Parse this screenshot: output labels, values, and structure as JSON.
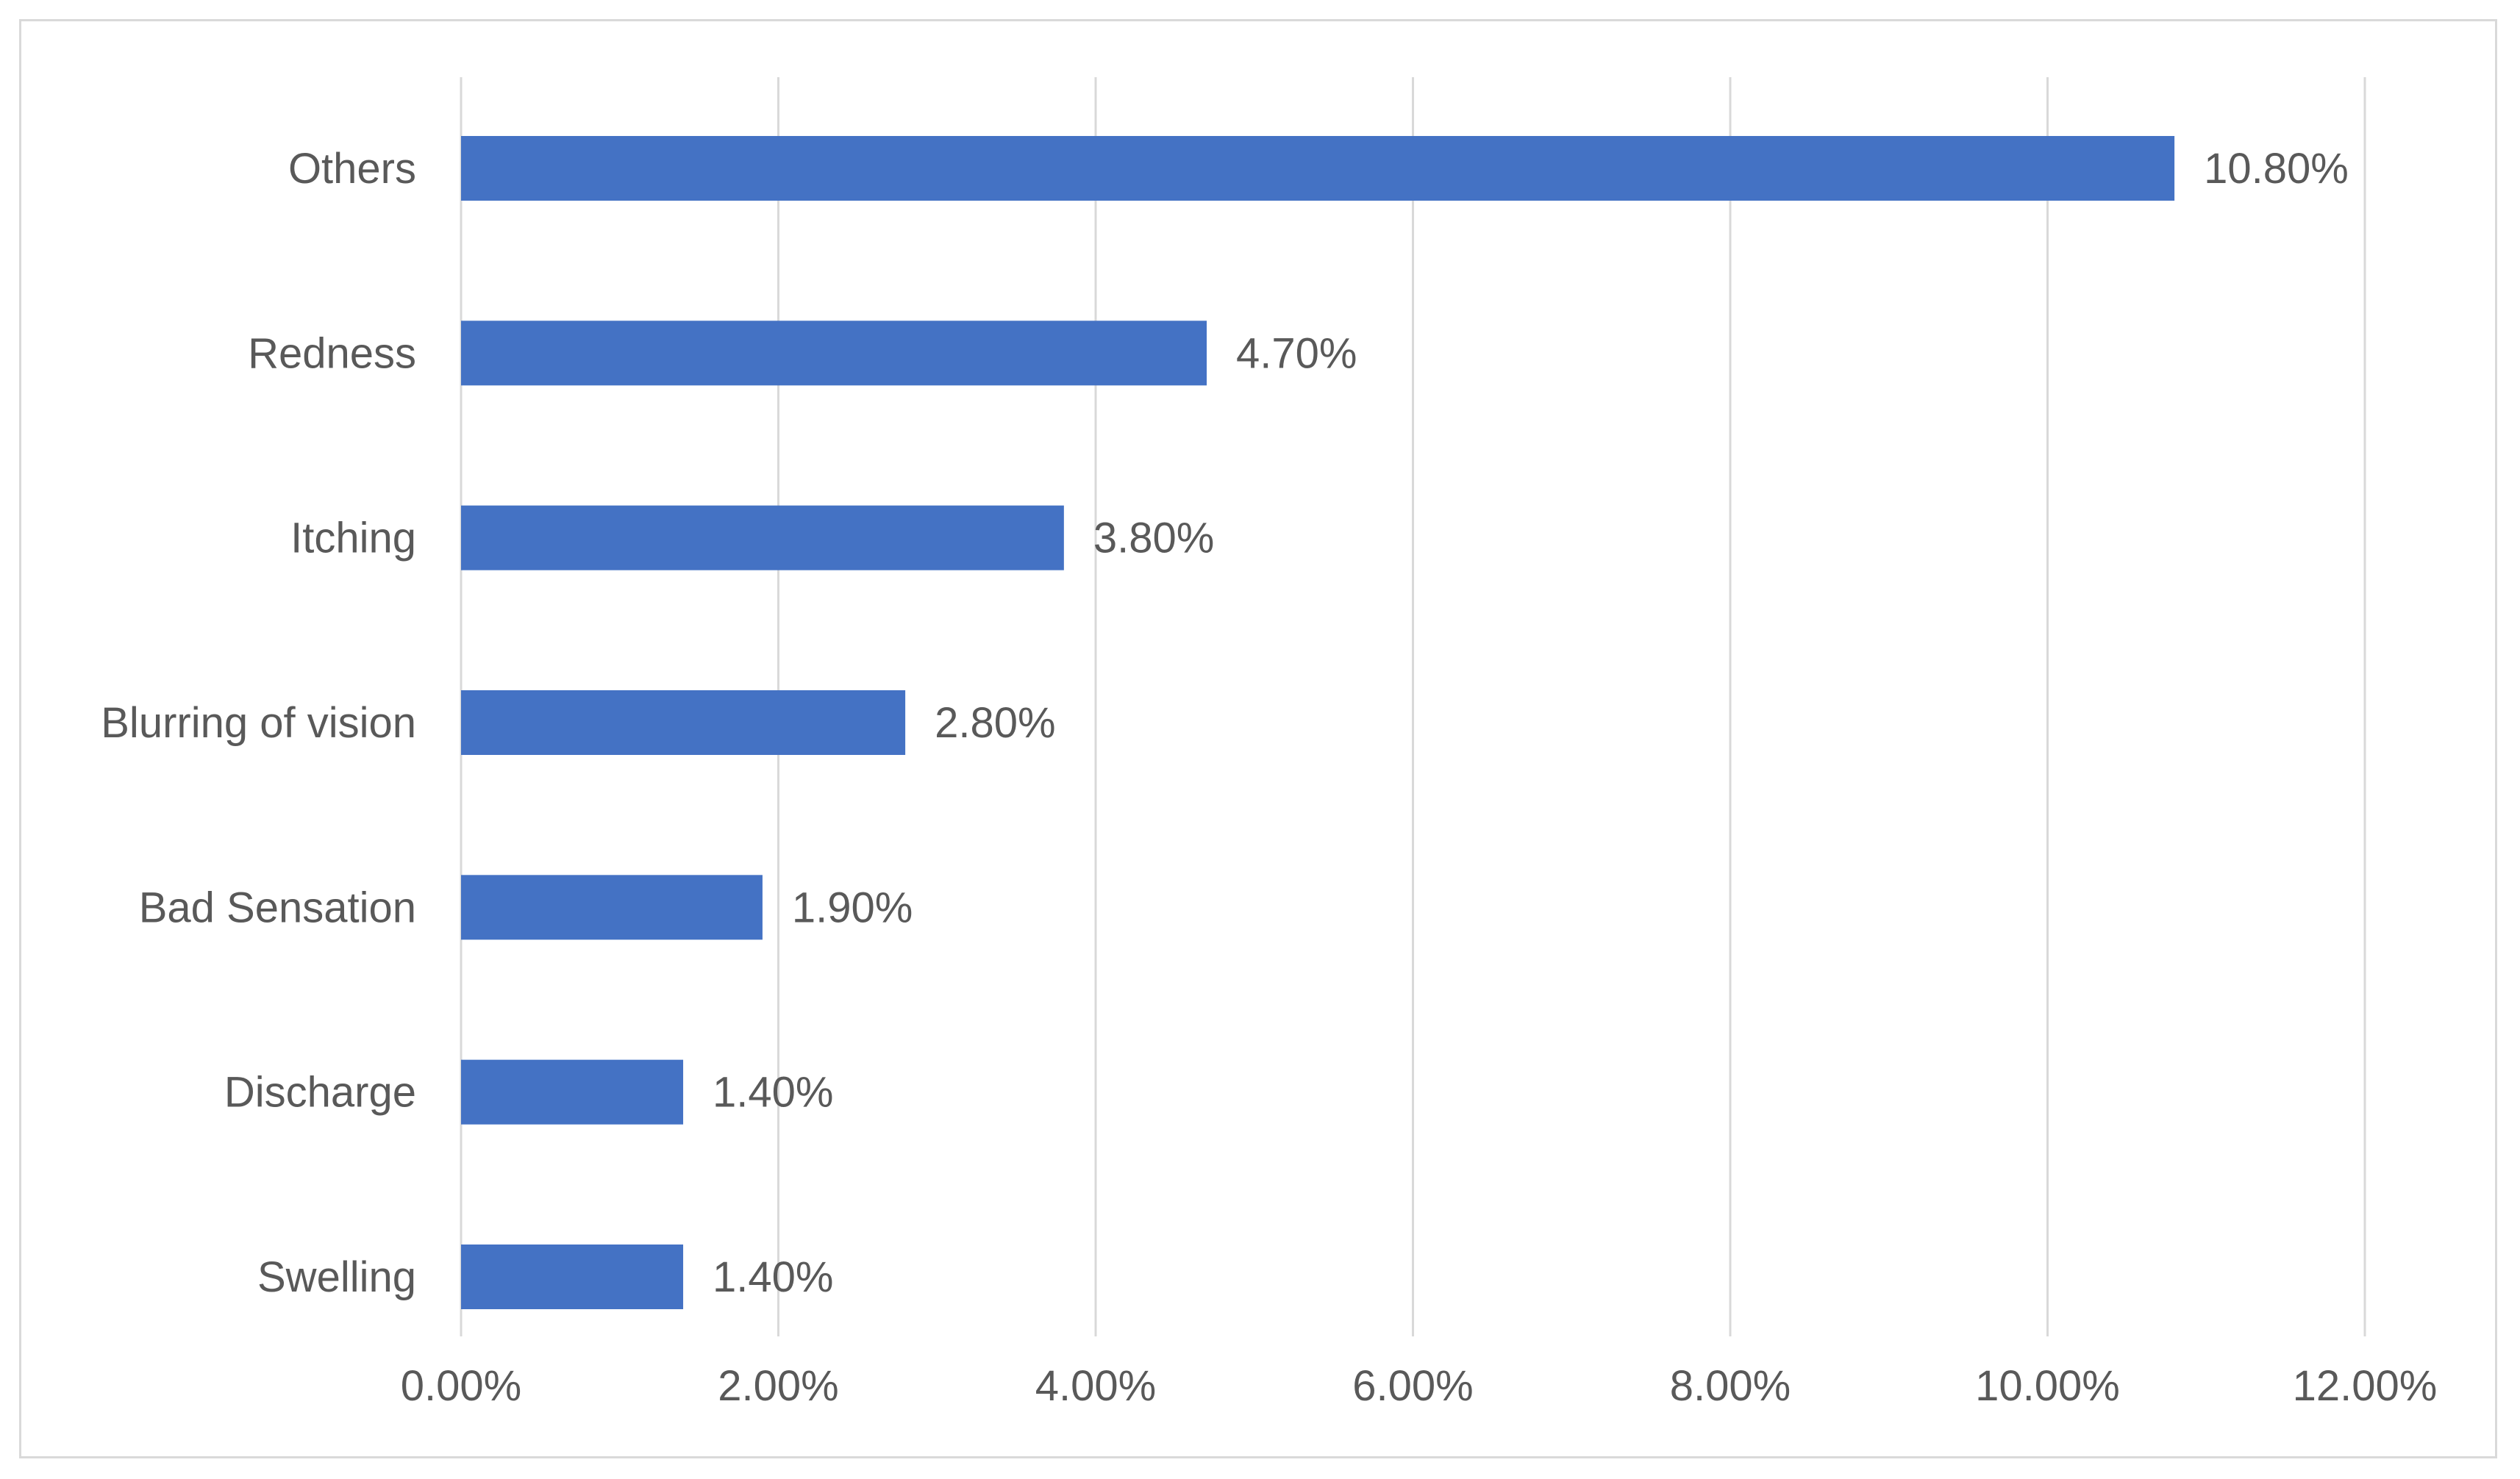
{
  "chart_data": {
    "type": "bar",
    "orientation": "horizontal",
    "title": "",
    "xlabel": "",
    "ylabel": "",
    "categories": [
      "Others",
      "Redness",
      "Itching",
      "Blurring of vision",
      "Bad Sensation",
      "Discharge",
      "Swelling"
    ],
    "values": [
      10.8,
      4.7,
      3.8,
      2.8,
      1.9,
      1.4,
      1.4
    ],
    "data_labels": [
      "10.80%",
      "4.70%",
      "3.80%",
      "2.80%",
      "1.90%",
      "1.40%",
      "1.40%"
    ],
    "xlim": [
      0,
      12
    ],
    "x_ticks": [
      0,
      2,
      4,
      6,
      8,
      10,
      12
    ],
    "x_tick_labels": [
      "0.00%",
      "2.00%",
      "4.00%",
      "6.00%",
      "8.00%",
      "10.00%",
      "12.00%"
    ],
    "grid": "vertical",
    "legend": "none",
    "colors": {
      "bar": "#4472c4",
      "grid": "#d9d9d9",
      "text": "#595959",
      "frame": "#d9d9d9"
    }
  }
}
